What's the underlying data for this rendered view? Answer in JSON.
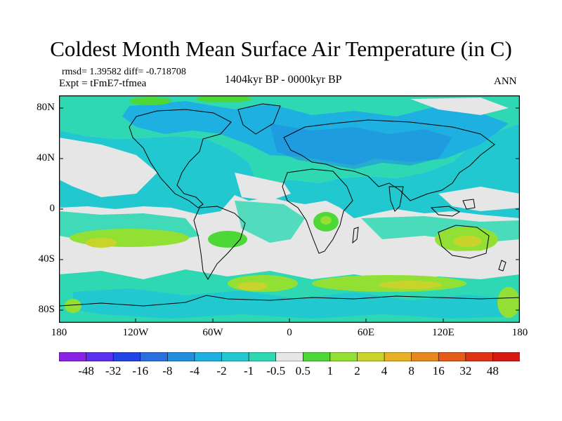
{
  "header": {
    "title": "Coldest Month Mean Surface Air Temperature (in C)",
    "stats": "rmsd= 1.39582 diff= -0.718708",
    "experiment": "Expt = tFmE7-tfmea",
    "period": "1404kyr BP - 0000kyr BP",
    "season": "ANN"
  },
  "map": {
    "lat_labels": [
      "80N",
      "40N",
      "0",
      "40S",
      "80S"
    ],
    "lon_labels": [
      "180",
      "120W",
      "60W",
      "0",
      "60E",
      "120E",
      "180"
    ]
  },
  "colorbar": {
    "levels": [
      "-48",
      "-32",
      "-16",
      "-8",
      "-4",
      "-2",
      "-1",
      "-0.5",
      "0.5",
      "1",
      "2",
      "4",
      "8",
      "16",
      "32",
      "48"
    ],
    "colors": [
      "#8a22e8",
      "#5a2ff0",
      "#2244e6",
      "#2a6fe0",
      "#1f8fe0",
      "#1fb0e2",
      "#22c8cf",
      "#2ed8b3",
      "#e6e6e6",
      "#4ed838",
      "#92e034",
      "#c8d42c",
      "#e8b025",
      "#e8861f",
      "#e65a1a",
      "#e03316",
      "#d61a10"
    ]
  }
}
